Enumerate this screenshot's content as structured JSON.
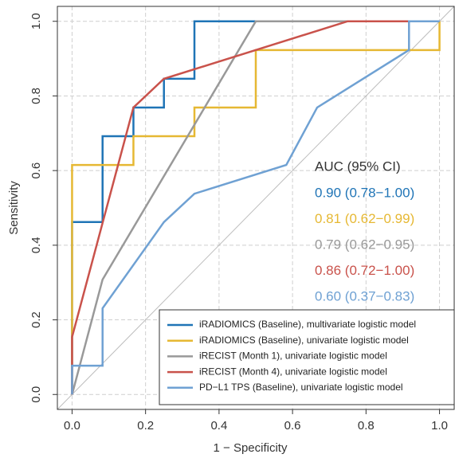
{
  "chart_data": {
    "type": "line",
    "xlabel": "1 − Specificity",
    "ylabel": "Sensitivity",
    "xlim": [
      -0.04,
      1.04
    ],
    "ylim": [
      -0.04,
      1.04
    ],
    "xticks": [
      {
        "value": 0,
        "label": "0.0"
      },
      0.2,
      0.4,
      0.6,
      0.8,
      {
        "value": 1,
        "label": "1.0"
      }
    ],
    "yticks": [
      {
        "value": 0,
        "label": "0.0"
      },
      0.2,
      0.4,
      0.6,
      0.8,
      {
        "value": 1,
        "label": "1.0"
      }
    ],
    "grid": true,
    "annotation_title": "AUC (95% CI)",
    "series": [
      {
        "name": "iRADIOMICS (Baseline), multivariate logistic model",
        "color": "#1f74b6",
        "auc_label": "0.90 (0.78−1.00)",
        "x": [
          0,
          0,
          0.083,
          0.083,
          0.167,
          0.167,
          0.25,
          0.25,
          0.333,
          0.333,
          1
        ],
        "values": [
          0,
          0.462,
          0.462,
          0.692,
          0.692,
          0.769,
          0.769,
          0.846,
          0.846,
          1,
          1
        ]
      },
      {
        "name": "iRADIOMICS (Baseline), univariate logistic model",
        "color": "#e6b833",
        "auc_label": "0.81 (0.62−0.99)",
        "x": [
          0,
          0,
          0.167,
          0.167,
          0.333,
          0.333,
          0.5,
          0.5,
          1,
          1
        ],
        "values": [
          0,
          0.615,
          0.615,
          0.692,
          0.692,
          0.769,
          0.769,
          0.923,
          0.923,
          1
        ]
      },
      {
        "name": "iRECIST (Month 1), univariate logistic model",
        "color": "#999999",
        "auc_label": "0.79 (0.62−0.95)",
        "x": [
          0,
          0.083,
          0.5,
          1
        ],
        "values": [
          0,
          0.308,
          1,
          1
        ]
      },
      {
        "name": "iRECIST (Month 4), univariate logistic model",
        "color": "#c9524b",
        "auc_label": "0.86 (0.72−1.00)",
        "x": [
          0,
          0,
          0.167,
          0.25,
          0.5,
          0.75,
          1
        ],
        "values": [
          0,
          0.154,
          0.769,
          0.846,
          0.923,
          1,
          1
        ]
      },
      {
        "name": "PD−L1 TPS (Baseline), univariate logistic model",
        "color": "#6fa1d3",
        "auc_label": "0.60 (0.37−0.83)",
        "x": [
          0,
          0,
          0.083,
          0.083,
          0.25,
          0.333,
          0.583,
          0.667,
          0.917,
          0.917,
          1
        ],
        "values": [
          0,
          0.077,
          0.077,
          0.231,
          0.462,
          0.538,
          0.615,
          0.769,
          0.923,
          1,
          1
        ]
      }
    ]
  }
}
